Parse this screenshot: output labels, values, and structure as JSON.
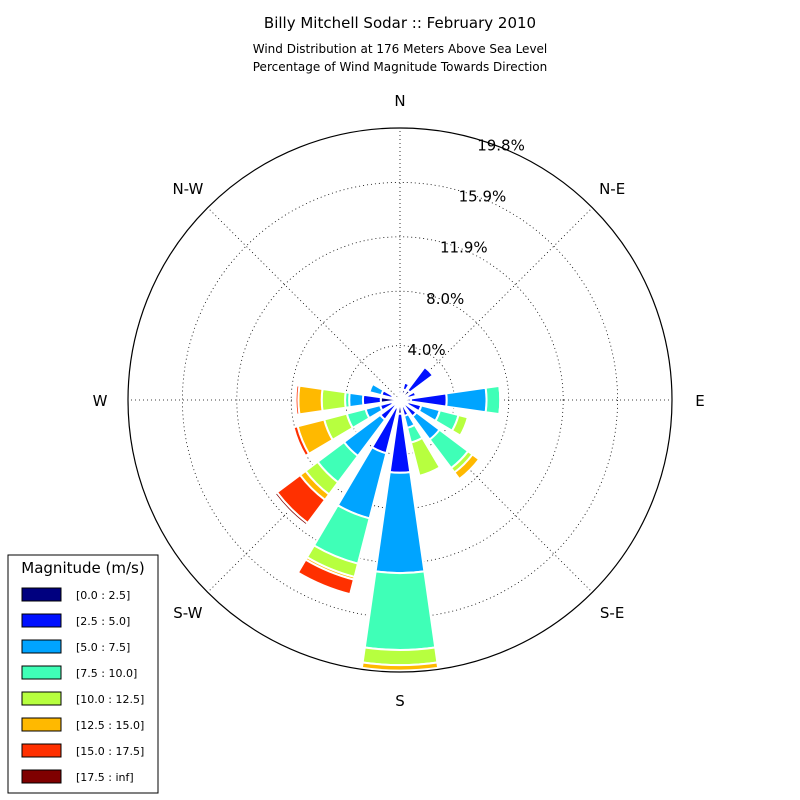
{
  "chart_data": {
    "type": "windrose",
    "title": "Billy Mitchell Sodar :: February 2010",
    "subtitle_lines": [
      "Wind Distribution at 176 Meters Above Sea Level",
      "Percentage of Wind Magnitude Towards Direction"
    ],
    "radial_max": 19.8,
    "ring_labels": [
      "4.0%",
      "8.0%",
      "11.9%",
      "15.9%",
      "19.8%"
    ],
    "ring_values": [
      3.96,
      7.92,
      11.88,
      15.84,
      19.8
    ],
    "direction_labels": [
      "N",
      "N-E",
      "E",
      "S-E",
      "S",
      "S-W",
      "W",
      "N-W"
    ],
    "legend": {
      "title": "Magnitude (m/s)",
      "bins": [
        {
          "label": "[0.0 : 2.5]",
          "color": "#00007f"
        },
        {
          "label": "[2.5 : 5.0]",
          "color": "#0010ff"
        },
        {
          "label": "[5.0 : 7.5]",
          "color": "#00a4ff"
        },
        {
          "label": "[7.5 : 10.0]",
          "color": "#3fffb7"
        },
        {
          "label": "[10.0 : 12.5]",
          "color": "#b7ff3f"
        },
        {
          "label": "[12.5 : 15.0]",
          "color": "#ffb900"
        },
        {
          "label": "[15.0 : 17.5]",
          "color": "#ff3000"
        },
        {
          "label": "[17.5 : inf]",
          "color": "#7f0000"
        }
      ]
    },
    "sectors": [
      {
        "direction_deg": 0,
        "cumulative": [
          0.7,
          0.8
        ]
      },
      {
        "direction_deg": 22.5,
        "cumulative": [
          0.8,
          1.3
        ]
      },
      {
        "direction_deg": 45,
        "cumulative": [
          0.9,
          3.0
        ]
      },
      {
        "direction_deg": 67.5,
        "cumulative": [
          0.6,
          1.2
        ]
      },
      {
        "direction_deg": 90,
        "cumulative": [
          0.8,
          3.4,
          6.3,
          7.3,
          7.4
        ]
      },
      {
        "direction_deg": 112.5,
        "cumulative": [
          0.6,
          1.6,
          3.0,
          4.4,
          5.1
        ]
      },
      {
        "direction_deg": 135,
        "cumulative": [
          0.5,
          1.5,
          3.6,
          6.2,
          6.6,
          7.2
        ]
      },
      {
        "direction_deg": 157.5,
        "cumulative": [
          0.5,
          1.2,
          2.1,
          3.2,
          5.7
        ]
      },
      {
        "direction_deg": 180,
        "cumulative": [
          1.0,
          5.3,
          12.6,
          18.2,
          19.3,
          19.7
        ]
      },
      {
        "direction_deg": 202.5,
        "cumulative": [
          0.6,
          4.0,
          8.9,
          12.3,
          13.3,
          13.5,
          14.6
        ]
      },
      {
        "direction_deg": 225,
        "cumulative": [
          0.5,
          1.8,
          5.1,
          7.5,
          8.6,
          9.1,
          11.2,
          11.4
        ]
      },
      {
        "direction_deg": 247.5,
        "cumulative": [
          0.6,
          1.5,
          2.6,
          4.0,
          5.7,
          7.7,
          8.0
        ]
      },
      {
        "direction_deg": 270,
        "cumulative": [
          1.4,
          2.7,
          3.7,
          4.0,
          5.7,
          7.4,
          7.6
        ]
      },
      {
        "direction_deg": 292.5,
        "cumulative": [
          0.6,
          1.4,
          2.3
        ]
      }
    ]
  }
}
